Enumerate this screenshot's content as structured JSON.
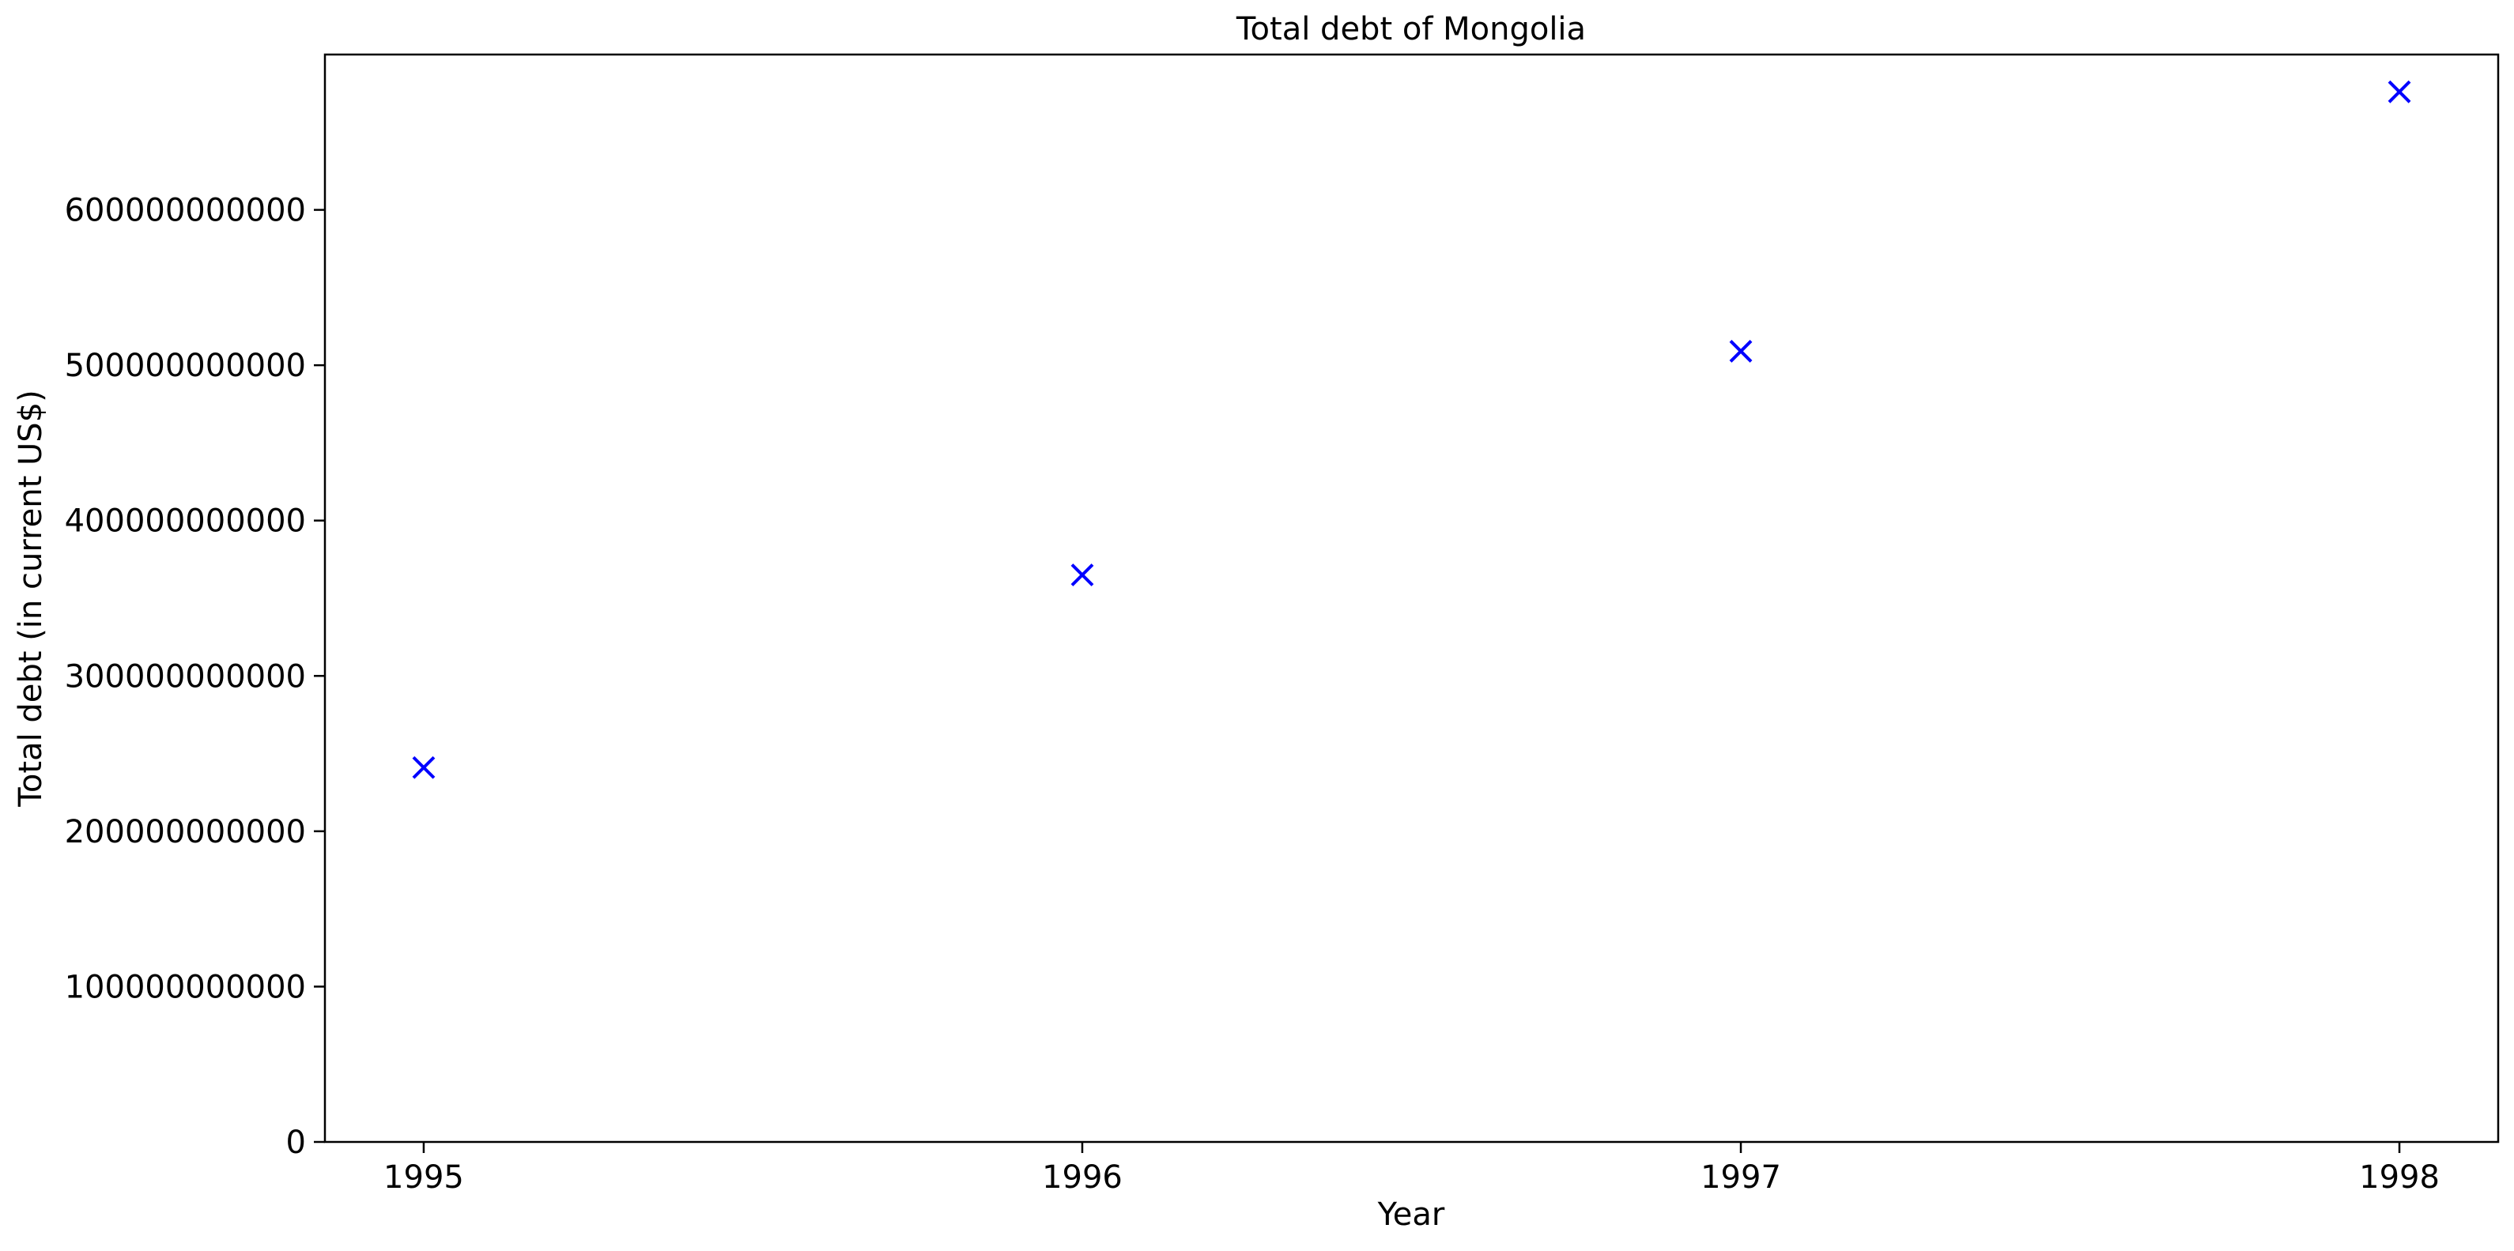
{
  "chart_data": {
    "type": "scatter",
    "title": "Total debt of Mongolia",
    "xlabel": "Year",
    "ylabel": "Total debt (in current US$)",
    "x": [
      1995,
      1996,
      1997,
      1998
    ],
    "y": [
      241000000000,
      365000000000,
      509000000000,
      676000000000
    ],
    "x_ticks": [
      "1995",
      "1996",
      "1997",
      "1998"
    ],
    "y_ticks": [
      "0",
      "100000000000",
      "200000000000",
      "300000000000",
      "400000000000",
      "500000000000",
      "600000000000"
    ],
    "xlim": [
      1994.85,
      1998.15
    ],
    "ylim": [
      0,
      700000000000
    ],
    "marker": "x",
    "marker_color": "#0000ff",
    "grid": false,
    "legend": "none"
  }
}
